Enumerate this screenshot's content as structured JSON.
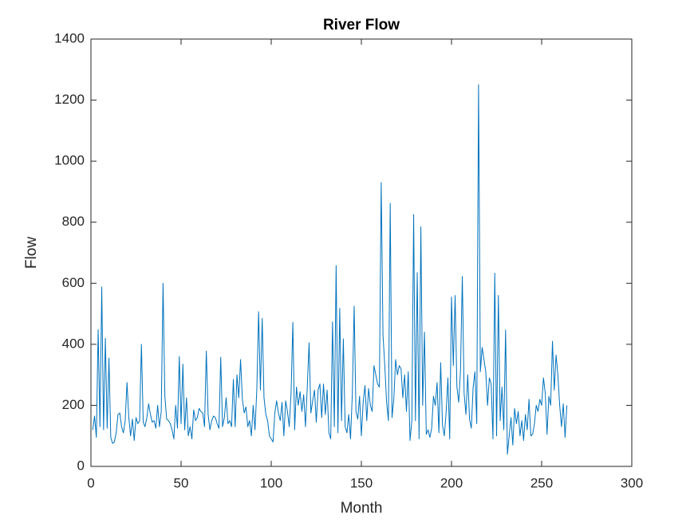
{
  "chart_data": {
    "type": "line",
    "title": "River Flow",
    "xlabel": "Month",
    "ylabel": "Flow",
    "color": "#0072bd",
    "x": [
      1,
      2,
      3,
      4,
      5,
      6,
      7,
      8,
      9,
      10,
      11,
      12,
      13,
      14,
      15,
      16,
      17,
      18,
      19,
      20,
      21,
      22,
      23,
      24,
      25,
      26,
      27,
      28,
      29,
      30,
      31,
      32,
      33,
      34,
      35,
      36,
      37,
      38,
      39,
      40,
      41,
      42,
      43,
      44,
      45,
      46,
      47,
      48,
      49,
      50,
      51,
      52,
      53,
      54,
      55,
      56,
      57,
      58,
      59,
      60,
      61,
      62,
      63,
      64,
      65,
      66,
      67,
      68,
      69,
      70,
      71,
      72,
      73,
      74,
      75,
      76,
      77,
      78,
      79,
      80,
      81,
      82,
      83,
      84,
      85,
      86,
      87,
      88,
      89,
      90,
      91,
      92,
      93,
      94,
      95,
      96,
      97,
      98,
      99,
      100,
      101,
      102,
      103,
      104,
      105,
      106,
      107,
      108,
      109,
      110,
      111,
      112,
      113,
      114,
      115,
      116,
      117,
      118,
      119,
      120,
      121,
      122,
      123,
      124,
      125,
      126,
      127,
      128,
      129,
      130,
      131,
      132,
      133,
      134,
      135,
      136,
      137,
      138,
      139,
      140,
      141,
      142,
      143,
      144,
      145,
      146,
      147,
      148,
      149,
      150,
      151,
      152,
      153,
      154,
      155,
      156,
      157,
      158,
      159,
      160,
      161,
      162,
      163,
      164,
      165,
      166,
      167,
      168,
      169,
      170,
      171,
      172,
      173,
      174,
      175,
      176,
      177,
      178,
      179,
      180,
      181,
      182,
      183,
      184,
      185,
      186,
      187,
      188,
      189,
      190,
      191,
      192,
      193,
      194,
      195,
      196,
      197,
      198,
      199,
      200,
      201,
      202,
      203,
      204,
      205,
      206,
      207,
      208,
      209,
      210,
      211,
      212,
      213,
      214,
      215,
      216,
      217,
      218,
      219,
      220,
      221,
      222,
      223,
      224,
      225,
      226,
      227,
      228,
      229,
      230,
      231,
      232,
      233,
      234,
      235,
      236,
      237,
      238,
      239,
      240,
      241,
      242,
      243,
      244,
      245,
      246,
      247,
      248,
      249,
      250,
      251,
      252,
      253,
      254,
      255,
      256,
      257,
      258,
      259,
      260,
      261,
      262,
      263,
      264
    ],
    "values": [
      120,
      165,
      95,
      448,
      130,
      588,
      120,
      420,
      125,
      355,
      95,
      75,
      80,
      110,
      170,
      175,
      130,
      110,
      150,
      275,
      160,
      100,
      155,
      85,
      160,
      140,
      150,
      400,
      145,
      130,
      160,
      205,
      170,
      145,
      150,
      125,
      200,
      130,
      180,
      600,
      230,
      155,
      150,
      140,
      120,
      90,
      200,
      125,
      360,
      140,
      335,
      120,
      225,
      100,
      130,
      90,
      185,
      150,
      160,
      190,
      180,
      175,
      130,
      378,
      170,
      120,
      150,
      165,
      160,
      140,
      125,
      358,
      130,
      160,
      225,
      140,
      150,
      130,
      285,
      130,
      300,
      225,
      350,
      220,
      175,
      195,
      130,
      150,
      100,
      200,
      120,
      250,
      507,
      250,
      485,
      225,
      170,
      150,
      100,
      90,
      80,
      175,
      215,
      175,
      150,
      210,
      100,
      215,
      180,
      130,
      240,
      472,
      120,
      260,
      200,
      245,
      180,
      235,
      130,
      260,
      405,
      175,
      215,
      250,
      145,
      250,
      270,
      160,
      270,
      170,
      250,
      110,
      90,
      473,
      130,
      658,
      110,
      518,
      150,
      418,
      130,
      110,
      170,
      90,
      240,
      525,
      180,
      155,
      230,
      100,
      210,
      265,
      150,
      255,
      200,
      180,
      330,
      300,
      270,
      260,
      930,
      430,
      330,
      210,
      150,
      862,
      160,
      220,
      350,
      300,
      330,
      320,
      225,
      300,
      180,
      310,
      85,
      150,
      825,
      150,
      635,
      90,
      785,
      200,
      440,
      105,
      120,
      95,
      125,
      230,
      200,
      275,
      110,
      340,
      135,
      100,
      175,
      290,
      90,
      555,
      330,
      560,
      260,
      210,
      315,
      622,
      240,
      170,
      300,
      155,
      125,
      260,
      310,
      140,
      1250,
      310,
      390,
      350,
      310,
      200,
      290,
      270,
      90,
      633,
      100,
      560,
      150,
      260,
      120,
      447,
      40,
      100,
      160,
      70,
      190,
      140,
      180,
      100,
      150,
      85,
      170,
      120,
      220,
      100,
      105,
      140,
      200,
      180,
      220,
      200,
      290,
      240,
      105,
      230,
      200,
      410,
      250,
      365,
      300,
      200,
      130,
      205,
      95,
      200
    ],
    "xlim": [
      0,
      300
    ],
    "xticks": [
      0,
      50,
      100,
      150,
      200,
      250,
      300
    ],
    "ylim": [
      0,
      1400
    ],
    "yticks": [
      0,
      200,
      400,
      600,
      800,
      1000,
      1200,
      1400
    ]
  }
}
